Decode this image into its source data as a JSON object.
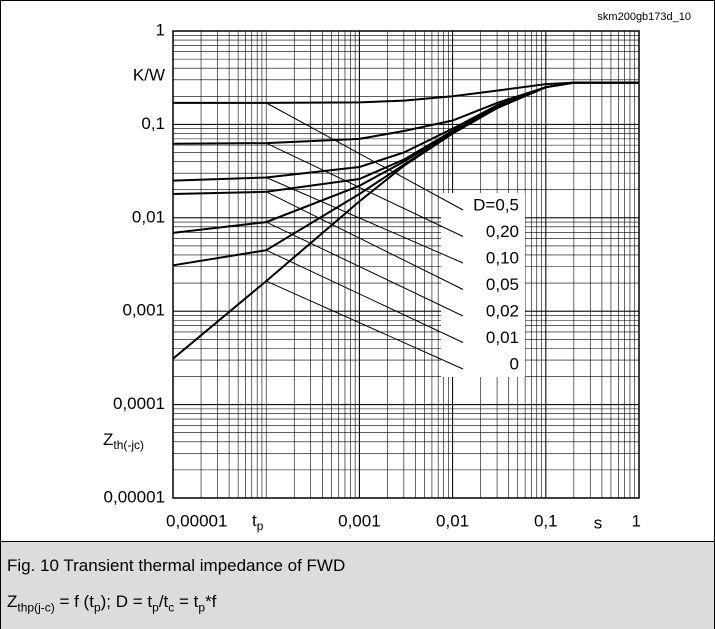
{
  "source_id": "skm200gb173d_10",
  "chart_data": {
    "type": "line",
    "log_x": true,
    "log_y": true,
    "grid": true,
    "y_unit": "K/W",
    "y_label": [
      "Z",
      "th(-jc)"
    ],
    "x_label": [
      "t",
      "p"
    ],
    "x_unit": "s",
    "x": [
      1e-05,
      0.0001,
      0.001,
      0.003,
      0.01,
      0.03,
      0.1,
      0.2,
      1
    ],
    "series": [
      {
        "name": "D=0,5",
        "color": "#000000",
        "values": [
          0.17,
          0.17,
          0.172,
          0.18,
          0.2,
          0.23,
          0.27,
          0.28,
          0.28
        ]
      },
      {
        "name": "0,20",
        "color": "#000000",
        "values": [
          0.062,
          0.063,
          0.07,
          0.085,
          0.11,
          0.17,
          0.25,
          0.28,
          0.28
        ]
      },
      {
        "name": "0,10",
        "color": "#000000",
        "values": [
          0.025,
          0.027,
          0.035,
          0.05,
          0.09,
          0.16,
          0.25,
          0.28,
          0.28
        ]
      },
      {
        "name": "0,05",
        "color": "#000000",
        "values": [
          0.018,
          0.019,
          0.026,
          0.042,
          0.085,
          0.155,
          0.25,
          0.28,
          0.28
        ]
      },
      {
        "name": "0,02",
        "color": "#000000",
        "values": [
          0.0069,
          0.009,
          0.022,
          0.04,
          0.083,
          0.15,
          0.25,
          0.28,
          0.28
        ]
      },
      {
        "name": "0,01",
        "color": "#000000",
        "values": [
          0.0031,
          0.0045,
          0.018,
          0.037,
          0.08,
          0.15,
          0.25,
          0.28,
          0.28
        ]
      },
      {
        "name": "0",
        "color": "#000000",
        "values": [
          0.00031,
          0.0021,
          0.015,
          0.036,
          0.08,
          0.15,
          0.25,
          0.28,
          0.28
        ]
      }
    ],
    "xlim": [
      1e-05,
      1
    ],
    "ylim": [
      1e-05,
      1
    ],
    "xticks": [
      {
        "value": 1e-05,
        "label": "0,00001"
      },
      {
        "value": 0.001,
        "label": "0,001"
      },
      {
        "value": 0.01,
        "label": "0,01"
      },
      {
        "value": 0.1,
        "label": "0,1"
      },
      1
    ],
    "yticks": [
      {
        "value": 1e-05,
        "label": "0,00001"
      },
      {
        "value": 0.0001,
        "label": "0,0001"
      },
      {
        "value": 0.001,
        "label": "0,001"
      },
      {
        "value": 0.01,
        "label": "0,01"
      },
      {
        "value": 0.1,
        "label": "0,1"
      },
      1
    ]
  },
  "caption": {
    "title": "Fig. 10 Transient thermal impedance of FWD",
    "formula": [
      "Z",
      "thp(j-c)",
      " = f (t",
      "p",
      "); D = t",
      "p",
      "/t",
      "c",
      " = t",
      "p",
      "*f"
    ]
  }
}
